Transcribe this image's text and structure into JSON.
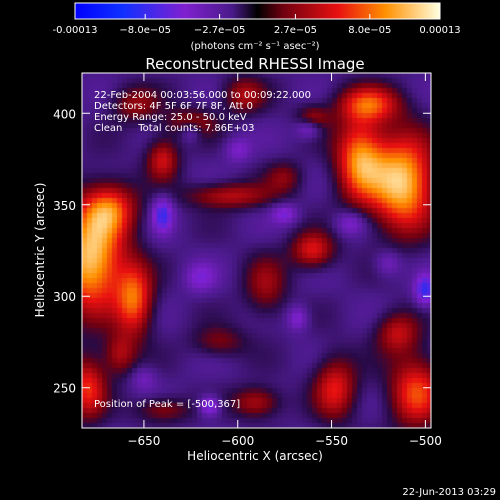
{
  "chart_data": {
    "type": "heatmap",
    "title": "Reconstructed RHESSI Image",
    "xlabel": "Heliocentric X (arcsec)",
    "ylabel": "Heliocentric Y (arcsec)",
    "xlim": [
      -683,
      -497
    ],
    "ylim": [
      228,
      422
    ],
    "x_ticks": [
      -650,
      -600,
      -550,
      -500
    ],
    "y_ticks": [
      250,
      300,
      350,
      400
    ],
    "colorbar": {
      "ticks": [
        -0.00013,
        -8e-05,
        -2.7e-05,
        2.7e-05,
        8e-05,
        0.00013
      ],
      "tick_labels": [
        "-0.00013",
        "−8.0e−05",
        "−2.7e−05",
        "2.7e−05",
        "8.0e−05",
        "0.00013"
      ],
      "range": [
        -0.00013,
        0.00013
      ],
      "unit_label": "(photons cm⁻² s⁻¹ asec⁻²)"
    },
    "annotations": {
      "time_range": "22-Feb-2004 00:03:56.000  to  00:09:22.000",
      "detectors": "Detectors: 4F 5F 6F 7F 8F, Att 0",
      "energy": "Energy Range: 25.0 - 50.0 keV",
      "method": "Clean     Total counts: 7.86E+03",
      "peak": "Position of Peak = [-500,367]"
    },
    "blobs": [
      {
        "x": -678,
        "y": 320,
        "amp": 1.0,
        "sx": 12,
        "sy": 20
      },
      {
        "x": -668,
        "y": 348,
        "amp": 0.6,
        "sx": 10,
        "sy": 10
      },
      {
        "x": -655,
        "y": 298,
        "amp": 0.7,
        "sx": 7,
        "sy": 14
      },
      {
        "x": -640,
        "y": 375,
        "amp": 0.5,
        "sx": 6,
        "sy": 8
      },
      {
        "x": -655,
        "y": 405,
        "amp": 0.35,
        "sx": 9,
        "sy": 7
      },
      {
        "x": -625,
        "y": 395,
        "amp": 0.35,
        "sx": 10,
        "sy": 6
      },
      {
        "x": -597,
        "y": 410,
        "amp": 0.4,
        "sx": 8,
        "sy": 7
      },
      {
        "x": -605,
        "y": 355,
        "amp": 0.45,
        "sx": 16,
        "sy": 5
      },
      {
        "x": -560,
        "y": 397,
        "amp": 0.4,
        "sx": 6,
        "sy": 5
      },
      {
        "x": -512,
        "y": 362,
        "amp": 1.0,
        "sx": 12,
        "sy": 18
      },
      {
        "x": -535,
        "y": 375,
        "amp": 0.8,
        "sx": 9,
        "sy": 16
      },
      {
        "x": -530,
        "y": 405,
        "amp": 0.6,
        "sx": 12,
        "sy": 7
      },
      {
        "x": -560,
        "y": 325,
        "amp": 0.55,
        "sx": 8,
        "sy": 7
      },
      {
        "x": -548,
        "y": 250,
        "amp": 0.55,
        "sx": 8,
        "sy": 12
      },
      {
        "x": -505,
        "y": 248,
        "amp": 0.65,
        "sx": 10,
        "sy": 14
      },
      {
        "x": -515,
        "y": 280,
        "amp": 0.45,
        "sx": 8,
        "sy": 8
      },
      {
        "x": -680,
        "y": 250,
        "amp": 0.6,
        "sx": 7,
        "sy": 12
      },
      {
        "x": -585,
        "y": 305,
        "amp": 0.35,
        "sx": 8,
        "sy": 12
      },
      {
        "x": -610,
        "y": 275,
        "amp": 0.3,
        "sx": 10,
        "sy": 6
      },
      {
        "x": -590,
        "y": 242,
        "amp": 0.45,
        "sx": 9,
        "sy": 6
      },
      {
        "x": -640,
        "y": 238,
        "amp": 0.35,
        "sx": 10,
        "sy": 5
      },
      {
        "x": -663,
        "y": 268,
        "amp": 0.4,
        "sx": 6,
        "sy": 8
      },
      {
        "x": -575,
        "y": 365,
        "amp": 0.3,
        "sx": 7,
        "sy": 6
      },
      {
        "x": -640,
        "y": 345,
        "amp": -0.45,
        "sx": 4,
        "sy": 7
      },
      {
        "x": -625,
        "y": 390,
        "amp": -0.3,
        "sx": 4,
        "sy": 4
      },
      {
        "x": -500,
        "y": 303,
        "amp": -0.5,
        "sx": 4,
        "sy": 6
      },
      {
        "x": -615,
        "y": 240,
        "amp": -0.45,
        "sx": 4,
        "sy": 4
      },
      {
        "x": -562,
        "y": 392,
        "amp": -0.4,
        "sx": 5,
        "sy": 4
      },
      {
        "x": -568,
        "y": 288,
        "amp": -0.3,
        "sx": 4,
        "sy": 5
      },
      {
        "x": -575,
        "y": 345,
        "amp": -0.3,
        "sx": 5,
        "sy": 4
      },
      {
        "x": -620,
        "y": 310,
        "amp": -0.25,
        "sx": 6,
        "sy": 6
      },
      {
        "x": -540,
        "y": 340,
        "amp": -0.3,
        "sx": 6,
        "sy": 5
      },
      {
        "x": -600,
        "y": 380,
        "amp": -0.25,
        "sx": 5,
        "sy": 5
      },
      {
        "x": -520,
        "y": 318,
        "amp": -0.25,
        "sx": 5,
        "sy": 5
      },
      {
        "x": -650,
        "y": 255,
        "amp": -0.2,
        "sx": 5,
        "sy": 5
      }
    ]
  },
  "footer": {
    "date": "22-Jun-2013 03:29"
  }
}
